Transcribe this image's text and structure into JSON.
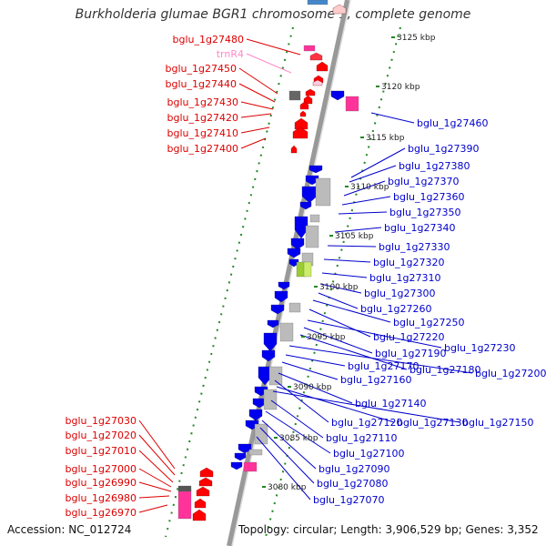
{
  "header": {
    "title": "Burkholderia glumae BGR1 chromosome 1, complete genome"
  },
  "footer": {
    "accession": "Accession: NC_012724",
    "topology": "Topology: circular; Length: 3,906,529 bp; Genes: 3,352"
  },
  "colors": {
    "forward_label": "#dd0000",
    "reverse_label": "#0000cc",
    "trna_label": "#ff88cc",
    "forward_gene": "#ff0000",
    "reverse_gene": "#0000ee",
    "pseudo_gene": "#bbbbbb",
    "rna_gene": "#ff3399",
    "spine": "#999999",
    "ticks": "#228822"
  },
  "scale_ticks": [
    "3125 kbp",
    "3120 kbp",
    "3115 kbp",
    "3110 kbp",
    "3105 kbp",
    "3100 kbp",
    "3095 kbp",
    "3090 kbp",
    "3085 kbp",
    "3080 kbp"
  ],
  "left_labels_top": [
    "bglu_1g27480",
    "trnR4",
    "bglu_1g27450",
    "bglu_1g27440",
    "bglu_1g27430",
    "bglu_1g27420",
    "bglu_1g27410",
    "bglu_1g27400"
  ],
  "left_labels_bottom": [
    "bglu_1g27030",
    "bglu_1g27020",
    "bglu_1g27010",
    "bglu_1g27000",
    "bglu_1g26990",
    "bglu_1g26980",
    "bglu_1g26970"
  ],
  "right_labels": [
    "bglu_1g27460",
    "bglu_1g27390",
    "bglu_1g27380",
    "bglu_1g27370",
    "bglu_1g27360",
    "bglu_1g27350",
    "bglu_1g27340",
    "bglu_1g27330",
    "bglu_1g27320",
    "bglu_1g27310",
    "bglu_1g27300",
    "bglu_1g27260",
    "bglu_1g27250",
    "bglu_1g27220",
    "bglu_1g27230",
    "bglu_1g27190",
    "bglu_1g27180",
    "bglu_1g27200",
    "bglu_1g27170",
    "bglu_1g27160",
    "bglu_1g27140",
    "bglu_1g27120",
    "bglu_1g27130",
    "bglu_1g27150",
    "bglu_1g27110",
    "bglu_1g27100",
    "bglu_1g27090",
    "bglu_1g27080",
    "bglu_1g27070"
  ]
}
